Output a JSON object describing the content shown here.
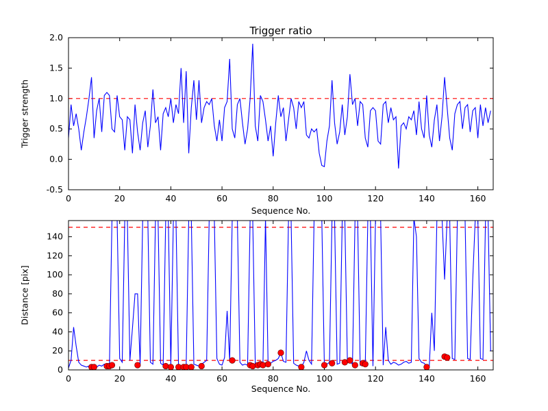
{
  "figure": {
    "background": "#ffffff"
  },
  "chart_data": [
    {
      "type": "line",
      "title": "Trigger ratio",
      "xlabel": "Sequence No.",
      "ylabel": "Trigger strength",
      "xlim": [
        0,
        166
      ],
      "ylim": [
        -0.5,
        2.0
      ],
      "xticks": [
        0,
        20,
        40,
        60,
        80,
        100,
        120,
        140,
        160
      ],
      "xtick_labels": [
        "0",
        "20",
        "40",
        "60",
        "80",
        "100",
        "120",
        "140",
        "160"
      ],
      "yticks": [
        -0.5,
        0.0,
        0.5,
        1.0,
        1.5,
        2.0
      ],
      "ytick_labels": [
        "-0.5",
        "0.0",
        "0.5",
        "1.0",
        "1.5",
        "2.0"
      ],
      "line_color": "#0000ff",
      "threshold_lines": [
        {
          "y": 1.0,
          "color": "#ff0000",
          "style": "dashed"
        }
      ],
      "x_start": 0,
      "x_step": 1,
      "values": [
        0.35,
        0.9,
        0.55,
        0.75,
        0.5,
        0.15,
        0.45,
        0.7,
        1.0,
        1.35,
        0.35,
        0.8,
        1.0,
        0.45,
        1.05,
        1.1,
        1.05,
        0.5,
        0.45,
        1.05,
        0.7,
        0.65,
        0.15,
        0.7,
        0.65,
        0.1,
        0.9,
        0.45,
        0.15,
        0.6,
        0.8,
        0.2,
        0.55,
        1.15,
        0.6,
        0.7,
        0.15,
        0.75,
        0.85,
        0.7,
        1.0,
        0.6,
        0.9,
        0.75,
        1.5,
        0.6,
        1.45,
        0.1,
        0.85,
        1.3,
        0.65,
        1.3,
        0.6,
        0.85,
        0.95,
        0.9,
        1.0,
        0.55,
        0.3,
        0.65,
        0.3,
        0.85,
        0.95,
        1.65,
        0.5,
        0.35,
        0.9,
        1.0,
        0.6,
        0.25,
        0.5,
        1.0,
        1.9,
        0.55,
        0.3,
        1.05,
        0.95,
        0.65,
        0.3,
        0.55,
        0.05,
        0.6,
        1.05,
        0.7,
        0.85,
        0.3,
        0.65,
        1.0,
        0.85,
        0.5,
        0.95,
        0.85,
        0.95,
        0.4,
        0.35,
        0.5,
        0.45,
        0.5,
        0.1,
        -0.1,
        -0.12,
        0.3,
        0.55,
        1.3,
        0.6,
        0.25,
        0.45,
        0.9,
        0.4,
        0.7,
        1.4,
        0.9,
        1.0,
        0.55,
        0.95,
        0.9,
        0.35,
        0.2,
        0.8,
        0.85,
        0.8,
        0.3,
        0.25,
        0.9,
        0.95,
        0.6,
        0.85,
        0.65,
        0.7,
        -0.15,
        0.55,
        0.6,
        0.5,
        0.7,
        0.65,
        0.8,
        0.4,
        0.95,
        0.5,
        0.35,
        1.05,
        0.4,
        0.2,
        0.65,
        0.9,
        0.3,
        0.7,
        1.35,
        0.85,
        0.35,
        0.15,
        0.75,
        0.9,
        0.95,
        0.5,
        0.85,
        0.9,
        0.45,
        0.8,
        0.85,
        0.35,
        0.9,
        0.55,
        0.85,
        0.6,
        0.8
      ]
    },
    {
      "type": "line",
      "title": "",
      "xlabel": "Sequence No.",
      "ylabel": "Distance [pix]",
      "xlim": [
        0,
        166
      ],
      "ylim": [
        0,
        157
      ],
      "xticks": [
        0,
        20,
        40,
        60,
        80,
        100,
        120,
        140,
        160
      ],
      "xtick_labels": [
        "0",
        "20",
        "40",
        "60",
        "80",
        "100",
        "120",
        "140",
        "160"
      ],
      "yticks": [
        0,
        20,
        40,
        60,
        80,
        100,
        120,
        140
      ],
      "ytick_labels": [
        "0",
        "20",
        "40",
        "60",
        "80",
        "100",
        "120",
        "140"
      ],
      "line_color": "#0000ff",
      "threshold_lines": [
        {
          "y": 150,
          "color": "#ff0000",
          "style": "dashed"
        },
        {
          "y": 10,
          "color": "#ff0000",
          "style": "dashed"
        }
      ],
      "x_start": 0,
      "x_step": 1,
      "values": [
        2,
        10,
        45,
        25,
        8,
        5,
        4,
        3,
        4,
        5,
        4,
        3,
        5,
        4,
        6,
        5,
        4,
        160,
        160,
        160,
        12,
        8,
        160,
        160,
        10,
        44,
        80,
        80,
        5,
        160,
        160,
        160,
        8,
        6,
        160,
        160,
        7,
        5,
        160,
        160,
        5,
        160,
        160,
        4,
        3,
        4,
        5,
        160,
        160,
        6,
        5,
        4,
        6,
        8,
        10,
        160,
        160,
        160,
        12,
        6,
        5,
        13,
        62,
        10,
        160,
        160,
        160,
        8,
        5,
        6,
        5,
        160,
        160,
        6,
        5,
        7,
        5,
        160,
        8,
        7,
        9,
        10,
        12,
        18,
        9,
        8,
        160,
        160,
        7,
        5,
        4,
        3,
        8,
        20,
        10,
        6,
        160,
        160,
        160,
        160,
        5,
        6,
        8,
        160,
        160,
        6,
        7,
        160,
        160,
        10,
        8,
        6,
        160,
        160,
        5,
        7,
        5,
        160,
        160,
        4,
        160,
        160,
        160,
        5,
        45,
        10,
        6,
        8,
        7,
        5,
        6,
        8,
        9,
        7,
        8,
        160,
        140,
        12,
        8,
        7,
        4,
        3,
        60,
        20,
        160,
        160,
        160,
        95,
        160,
        160,
        12,
        11,
        160,
        160,
        160,
        160,
        12,
        11,
        95,
        160,
        160,
        12,
        11,
        160,
        160,
        20
      ],
      "scatter": {
        "color": "#ff0000",
        "points": [
          [
            9,
            3
          ],
          [
            10,
            3
          ],
          [
            15,
            4
          ],
          [
            16,
            4
          ],
          [
            17,
            5
          ],
          [
            27,
            5
          ],
          [
            38,
            4
          ],
          [
            40,
            3
          ],
          [
            43,
            3
          ],
          [
            45,
            3
          ],
          [
            46,
            3
          ],
          [
            48,
            3
          ],
          [
            52,
            4
          ],
          [
            64,
            10
          ],
          [
            71,
            5
          ],
          [
            72,
            4
          ],
          [
            74,
            5
          ],
          [
            75,
            6
          ],
          [
            76,
            5
          ],
          [
            78,
            6
          ],
          [
            83,
            18
          ],
          [
            91,
            3
          ],
          [
            100,
            5
          ],
          [
            103,
            7
          ],
          [
            108,
            8
          ],
          [
            110,
            10
          ],
          [
            112,
            5
          ],
          [
            115,
            7
          ],
          [
            116,
            6
          ],
          [
            140,
            3
          ],
          [
            147,
            14
          ],
          [
            148,
            13
          ]
        ]
      }
    }
  ]
}
